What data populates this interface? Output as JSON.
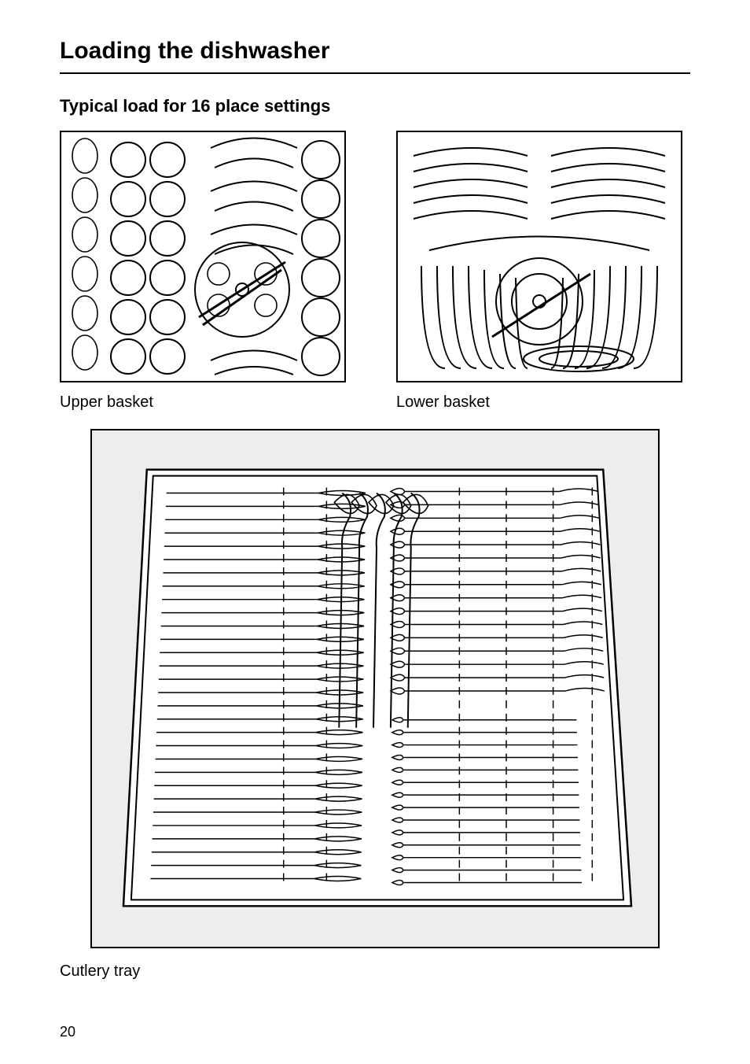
{
  "page": {
    "title": "Loading the dishwasher",
    "subtitle": "Typical load for 16 place settings",
    "page_number": "20"
  },
  "captions": {
    "upper": "Upper basket",
    "lower": "Lower basket",
    "cutlery": "Cutlery tray"
  },
  "styles": {
    "text_color": "#000000",
    "background_color": "#ffffff",
    "panel_border_color": "#000000",
    "panel_border_width": 2,
    "cutlery_panel_bg": "#ededed",
    "title_fontsize": 30,
    "subtitle_fontsize": 22,
    "caption_fontsize": 20,
    "pagenum_fontsize": 18
  },
  "diagrams": {
    "upper_basket": {
      "type": "line-diagram",
      "description": "Top-view of upper dishwasher basket showing cups, glasses, bowls and spray arm",
      "stroke": "#000000",
      "fill": "#ffffff",
      "cup_rows": 6,
      "glasses_column": true,
      "bowls_center": true,
      "spray_arm": true
    },
    "lower_basket": {
      "type": "line-diagram",
      "description": "Top-view of lower dishwasher basket showing plate rows and spray arm hub",
      "stroke": "#000000",
      "fill": "#ffffff",
      "plate_rows_back": 5,
      "plate_arcs_front": 8,
      "spray_arm": true
    },
    "cutlery_tray": {
      "type": "line-diagram",
      "description": "Top-view of cutlery tray packed with forks, knives, spoons and serving spoons in slotted rows",
      "stroke": "#000000",
      "tray_fill": "#ffffff",
      "background": "#ededed",
      "left_column_rows": 30,
      "right_upper_rows": 16,
      "right_lower_rows": 14,
      "serving_spoons": 5
    }
  }
}
